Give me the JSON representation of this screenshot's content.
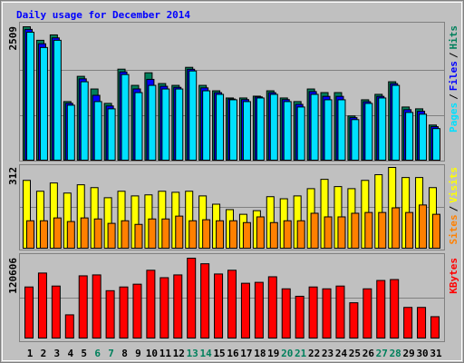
{
  "chart_data": [
    {
      "type": "bar",
      "title": "Daily usage for December 2014",
      "categories": [
        "1",
        "2",
        "3",
        "4",
        "5",
        "6",
        "7",
        "8",
        "9",
        "10",
        "11",
        "12",
        "13",
        "14",
        "15",
        "16",
        "17",
        "18",
        "19",
        "20",
        "21",
        "22",
        "23",
        "24",
        "25",
        "26",
        "27",
        "28",
        "29",
        "30",
        "31"
      ],
      "category_colors": [
        "#000000",
        "#000000",
        "#000000",
        "#000000",
        "#000000",
        "#00805c",
        "#00805c",
        "#000000",
        "#000000",
        "#000000",
        "#000000",
        "#000000",
        "#00805c",
        "#00805c",
        "#000000",
        "#000000",
        "#000000",
        "#000000",
        "#000000",
        "#00805c",
        "#00805c",
        "#000000",
        "#000000",
        "#000000",
        "#000000",
        "#000000",
        "#00805c",
        "#00805c",
        "#000000",
        "#000000",
        "#000000"
      ],
      "ylim": [
        0,
        2509
      ],
      "yticks": [
        2509
      ],
      "legend_separator": "/",
      "series": [
        {
          "name": "Hits",
          "color": "#00805c",
          "values": [
            2509,
            2255,
            2356,
            1102,
            1577,
            1339,
            1068,
            1712,
            1407,
            1644,
            1441,
            1407,
            1746,
            1407,
            1305,
            1170,
            1170,
            1204,
            1305,
            1170,
            1102,
            1339,
            1271,
            1271,
            831,
            1136,
            1238,
            1475,
            1000,
            966,
            661
          ]
        },
        {
          "name": "Files",
          "color": "#0000ff",
          "values": [
            2460,
            2190,
            2300,
            1070,
            1530,
            1220,
            1020,
            1660,
            1340,
            1520,
            1390,
            1370,
            1710,
            1360,
            1270,
            1150,
            1140,
            1190,
            1270,
            1140,
            1050,
            1290,
            1200,
            1200,
            800,
            1100,
            1200,
            1440,
            950,
            920,
            630
          ]
        },
        {
          "name": "Pages",
          "color": "#00e0ff",
          "values": [
            2407,
            2119,
            2255,
            1034,
            1475,
            1102,
            966,
            1611,
            1271,
            1407,
            1339,
            1339,
            1678,
            1305,
            1238,
            1136,
            1102,
            1170,
            1238,
            1102,
            1000,
            1238,
            1136,
            1136,
            763,
            1068,
            1170,
            1407,
            898,
            865,
            594
          ]
        }
      ]
    },
    {
      "type": "bar",
      "ylim": [
        0,
        312
      ],
      "yticks": [
        312
      ],
      "legend_separator": "/",
      "series": [
        {
          "name": "Visits",
          "color": "#ffff00",
          "values": [
            262,
            220,
            252,
            213,
            245,
            234,
            195,
            220,
            202,
            206,
            220,
            216,
            220,
            202,
            170,
            149,
            131,
            145,
            199,
            191,
            202,
            230,
            266,
            238,
            230,
            262,
            284,
            312,
            273,
            273,
            234
          ]
        },
        {
          "name": "Sites",
          "color": "#ff8000",
          "values": [
            106,
            106,
            117,
            103,
            117,
            113,
            96,
            106,
            92,
            113,
            113,
            124,
            106,
            110,
            106,
            106,
            99,
            121,
            99,
            106,
            106,
            135,
            121,
            121,
            135,
            138,
            138,
            156,
            138,
            167,
            131
          ]
        }
      ]
    },
    {
      "type": "bar",
      "ylim": [
        0,
        120606
      ],
      "yticks": [
        120606
      ],
      "series": [
        {
          "name": "KBytes",
          "color": "#ff0000",
          "values": [
            77132,
            98167,
            78534,
            35060,
            93960,
            95362,
            71523,
            77132,
            81340,
            102375,
            91156,
            95362,
            120606,
            112191,
            96765,
            102375,
            82742,
            84145,
            92558,
            74327,
            63108,
            77132,
            74327,
            78534,
            53291,
            74327,
            86949,
            88351,
            46279,
            46279,
            32256
          ]
        }
      ]
    }
  ]
}
